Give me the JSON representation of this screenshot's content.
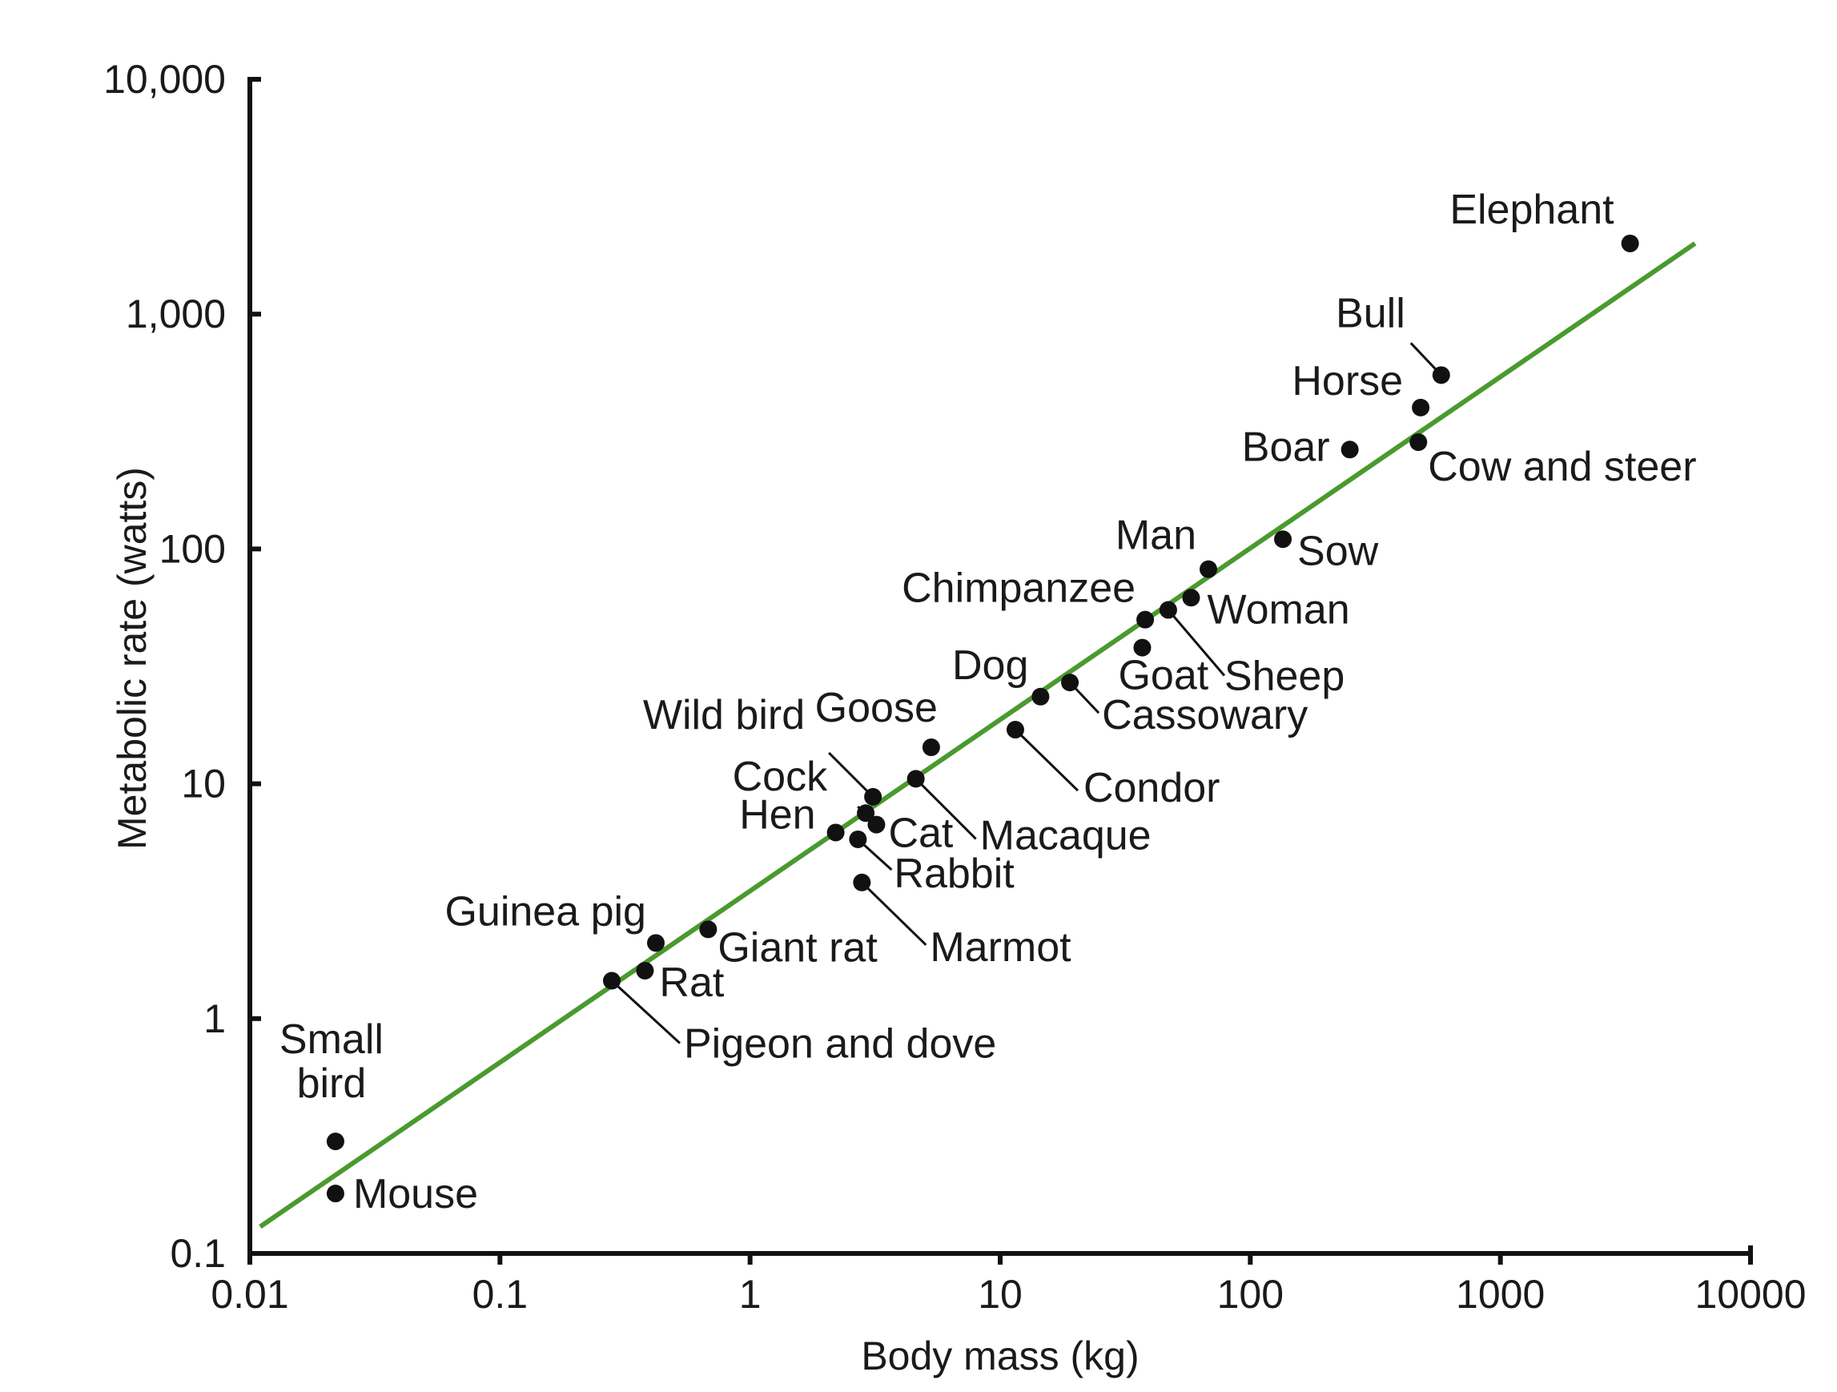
{
  "chart_data": {
    "type": "scatter",
    "xlabel": "Body mass (kg)",
    "ylabel": "Metabolic rate (watts)",
    "x_scale": "log",
    "y_scale": "log",
    "xlim": [
      0.01,
      10000
    ],
    "ylim": [
      0.1,
      10000
    ],
    "x_ticks": [
      "0.01",
      "0.1",
      "1",
      "10",
      "100",
      "1000",
      "10000"
    ],
    "y_ticks": [
      "0.1",
      "1",
      "10",
      "100",
      "1,000",
      "10,000"
    ],
    "fit_color": "#4a9a2e",
    "fit_line": [
      [
        0.011,
        0.13
      ],
      [
        6000,
        2000
      ]
    ],
    "points": [
      {
        "name": "Mouse",
        "x": 0.022,
        "y": 0.18
      },
      {
        "name": "Small bird",
        "x": 0.022,
        "y": 0.3
      },
      {
        "name": "Pigeon and dove",
        "x": 0.28,
        "y": 1.45
      },
      {
        "name": "Rat",
        "x": 0.38,
        "y": 1.6
      },
      {
        "name": "Guinea pig",
        "x": 0.42,
        "y": 2.1
      },
      {
        "name": "Giant rat",
        "x": 0.68,
        "y": 2.4
      },
      {
        "name": "Hen",
        "x": 2.2,
        "y": 6.2
      },
      {
        "name": "Rabbit",
        "x": 2.7,
        "y": 5.8
      },
      {
        "name": "Marmot",
        "x": 2.8,
        "y": 3.8
      },
      {
        "name": "Cock",
        "x": 2.9,
        "y": 7.5
      },
      {
        "name": "Wild bird",
        "x": 3.1,
        "y": 8.8
      },
      {
        "name": "Cat",
        "x": 3.2,
        "y": 6.7
      },
      {
        "name": "Macaque",
        "x": 4.6,
        "y": 10.5
      },
      {
        "name": "Goose",
        "x": 5.3,
        "y": 14.3
      },
      {
        "name": "Condor",
        "x": 11.5,
        "y": 17
      },
      {
        "name": "Dog",
        "x": 14.5,
        "y": 23.5
      },
      {
        "name": "Cassowary",
        "x": 19,
        "y": 27
      },
      {
        "name": "Goat",
        "x": 37,
        "y": 38
      },
      {
        "name": "Chimpanzee",
        "x": 38,
        "y": 50
      },
      {
        "name": "Sheep",
        "x": 47,
        "y": 55
      },
      {
        "name": "Woman",
        "x": 58,
        "y": 62
      },
      {
        "name": "Man",
        "x": 68,
        "y": 82
      },
      {
        "name": "Sow",
        "x": 135,
        "y": 110
      },
      {
        "name": "Boar",
        "x": 250,
        "y": 265
      },
      {
        "name": "Cow and steer",
        "x": 470,
        "y": 285
      },
      {
        "name": "Horse",
        "x": 480,
        "y": 400
      },
      {
        "name": "Bull",
        "x": 580,
        "y": 550
      },
      {
        "name": "Elephant",
        "x": 3300,
        "y": 2000
      }
    ]
  }
}
